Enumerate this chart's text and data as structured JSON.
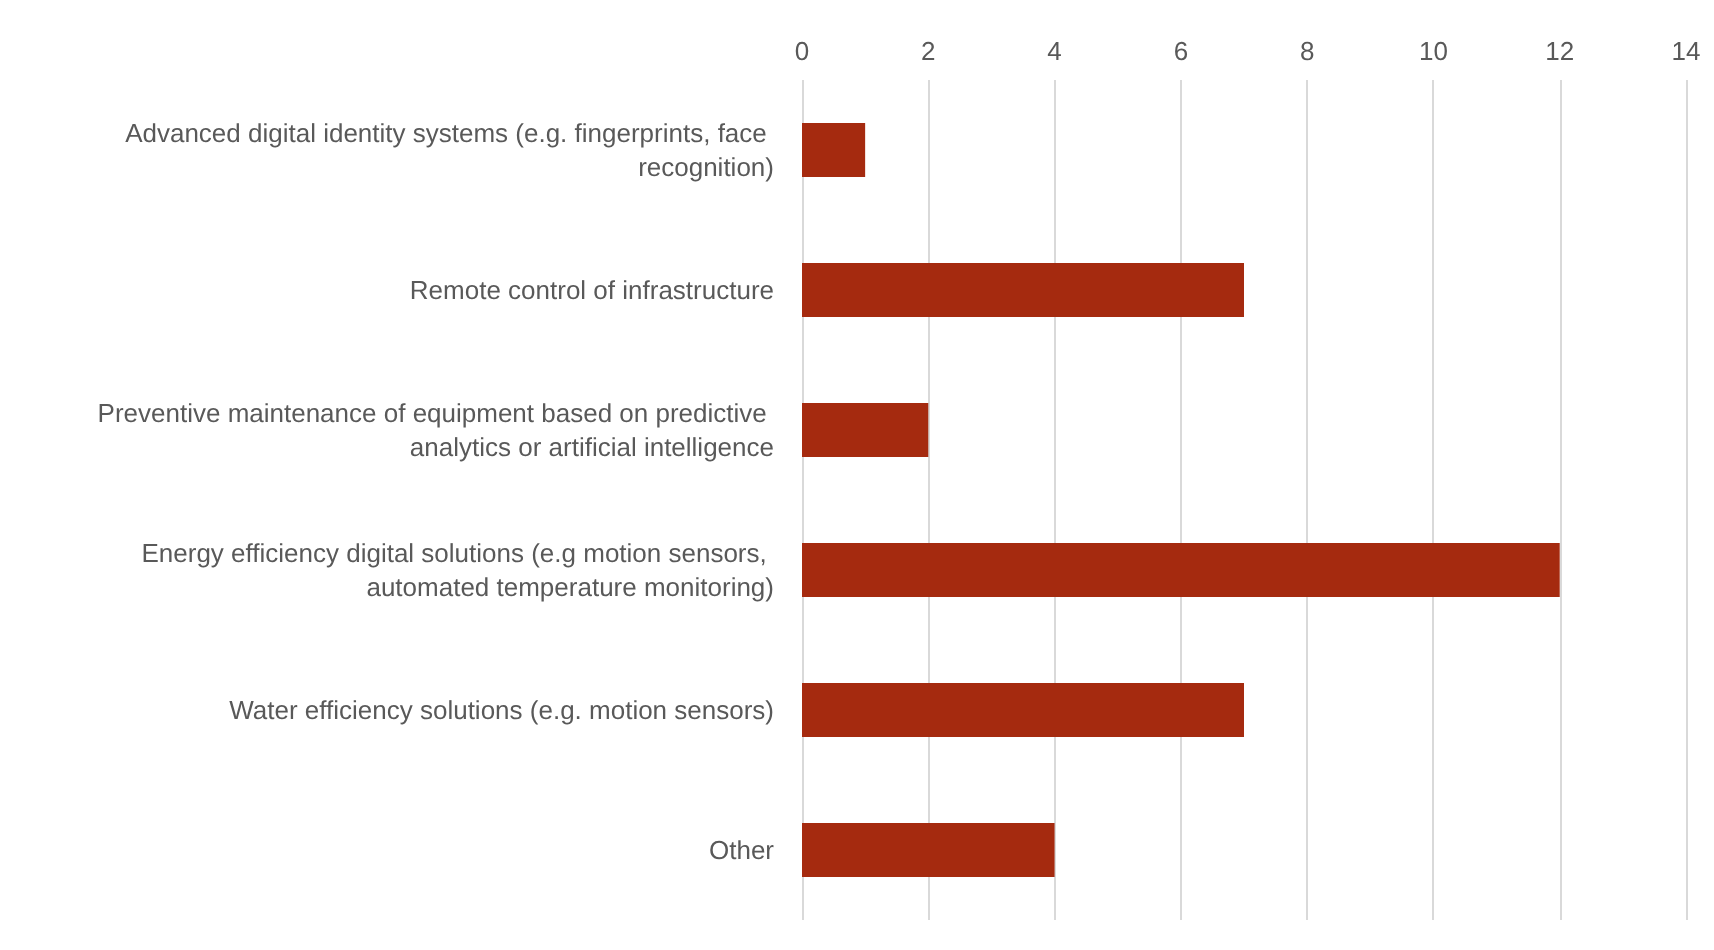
{
  "chart_data": {
    "type": "bar",
    "orientation": "horizontal",
    "categories": [
      "Advanced digital identity systems (e.g. fingerprints, face recognition)",
      "Remote control of infrastructure",
      "Preventive maintenance of equipment based on predictive analytics or artificial intelligence",
      "Energy efficiency digital solutions (e.g motion sensors, automated temperature monitoring)",
      "Water efficiency solutions (e.g. motion sensors)",
      "Other"
    ],
    "values": [
      1,
      7,
      2,
      12,
      7,
      4
    ],
    "color": "#a52a0f",
    "xlim": [
      0,
      14
    ],
    "xticks": [
      0,
      2,
      4,
      6,
      8,
      10,
      12,
      14
    ],
    "grid": "x"
  }
}
